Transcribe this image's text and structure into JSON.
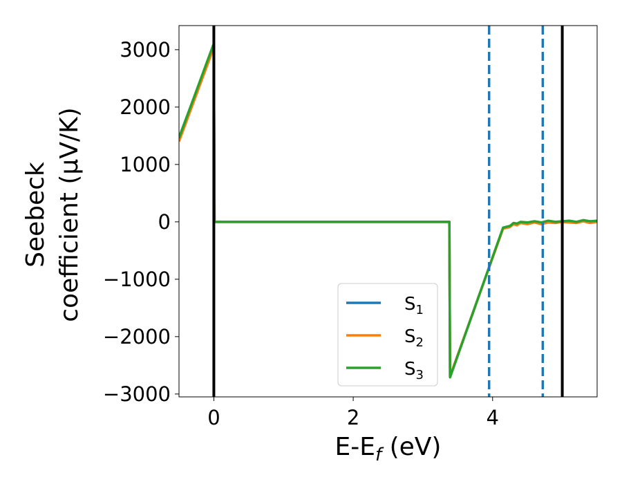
{
  "chart_data": {
    "type": "line",
    "xlabel": {
      "main": "E-E",
      "sub": "f",
      "rest": " (eV)"
    },
    "ylabel": {
      "line1": "Seebeck",
      "line2": "coefficient  (μV/K)"
    },
    "xlim": [
      -0.5,
      5.5
    ],
    "ylim": [
      -3050,
      3420
    ],
    "xticks": [
      0,
      2,
      4
    ],
    "xtick_labels": [
      "0",
      "2",
      "4"
    ],
    "yticks": [
      3000,
      2000,
      1000,
      0,
      -1000,
      -2000,
      -3000
    ],
    "ytick_labels": [
      "3000",
      "2000",
      "1000",
      "0",
      "−1000",
      "−2000",
      "−3000"
    ],
    "grid": false,
    "legend_position": "lower-center-right",
    "vlines": [
      {
        "x": 0,
        "style": "solid",
        "color": "#000000"
      },
      {
        "x": 5,
        "style": "solid",
        "color": "#000000"
      },
      {
        "x": 3.95,
        "style": "dashed",
        "color": "#1f77b4"
      },
      {
        "x": 4.72,
        "style": "dashed",
        "color": "#1f77b4"
      }
    ],
    "series": [
      {
        "name": "S1",
        "label_main": "S",
        "label_sub": "1",
        "color": "#1f77b4",
        "points": [
          [
            -0.5,
            1470
          ],
          [
            0,
            3080
          ],
          [
            0.01,
            0
          ],
          [
            3.38,
            0
          ],
          [
            3.39,
            -2700
          ],
          [
            4.15,
            -110
          ],
          [
            4.25,
            -80
          ],
          [
            4.3,
            -30
          ],
          [
            4.35,
            -40
          ],
          [
            4.4,
            -10
          ],
          [
            4.5,
            -20
          ],
          [
            4.6,
            0
          ],
          [
            4.7,
            -20
          ],
          [
            4.8,
            10
          ],
          [
            4.9,
            -10
          ],
          [
            5.0,
            0
          ],
          [
            5.1,
            10
          ],
          [
            5.2,
            -10
          ],
          [
            5.3,
            20
          ],
          [
            5.4,
            0
          ],
          [
            5.5,
            10
          ]
        ]
      },
      {
        "name": "S2",
        "label_main": "S",
        "label_sub": "2",
        "color": "#ff7f0e",
        "points": [
          [
            -0.5,
            1400
          ],
          [
            0,
            3040
          ],
          [
            0.01,
            0
          ],
          [
            3.38,
            0
          ],
          [
            3.39,
            -2690
          ],
          [
            4.15,
            -120
          ],
          [
            4.25,
            -90
          ],
          [
            4.3,
            -40
          ],
          [
            4.35,
            -60
          ],
          [
            4.4,
            -20
          ],
          [
            4.5,
            -40
          ],
          [
            4.6,
            -10
          ],
          [
            4.7,
            -40
          ],
          [
            4.8,
            -10
          ],
          [
            4.9,
            -20
          ],
          [
            5.0,
            0
          ],
          [
            5.1,
            -10
          ],
          [
            5.2,
            -20
          ],
          [
            5.3,
            10
          ],
          [
            5.4,
            -20
          ],
          [
            5.5,
            0
          ]
        ]
      },
      {
        "name": "S3",
        "label_main": "S",
        "label_sub": "3",
        "color": "#2ca02c",
        "points": [
          [
            -0.5,
            1460
          ],
          [
            0,
            3110
          ],
          [
            0.01,
            0
          ],
          [
            3.38,
            0
          ],
          [
            3.39,
            -2710
          ],
          [
            4.15,
            -100
          ],
          [
            4.25,
            -70
          ],
          [
            4.3,
            -20
          ],
          [
            4.35,
            -30
          ],
          [
            4.4,
            0
          ],
          [
            4.5,
            -10
          ],
          [
            4.6,
            10
          ],
          [
            4.7,
            -10
          ],
          [
            4.8,
            20
          ],
          [
            4.9,
            0
          ],
          [
            5.0,
            10
          ],
          [
            5.1,
            20
          ],
          [
            5.2,
            0
          ],
          [
            5.3,
            30
          ],
          [
            5.4,
            10
          ],
          [
            5.5,
            20
          ]
        ]
      }
    ]
  }
}
